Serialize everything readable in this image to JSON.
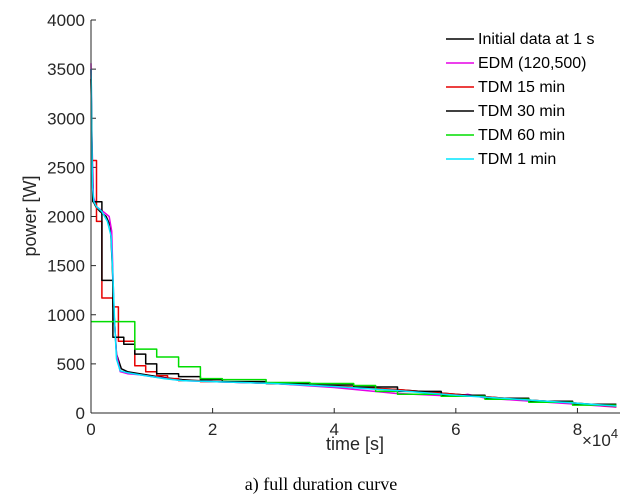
{
  "caption": "a) full duration curve",
  "chart_data": {
    "type": "line",
    "xlabel": "time [s]",
    "ylabel": "power [W]",
    "x_exponent_label": "×10",
    "x_exponent_power": "4",
    "xlim": [
      0,
      87000
    ],
    "ylim": [
      0,
      4000
    ],
    "xticks": [
      0,
      20000,
      40000,
      60000,
      80000
    ],
    "xtick_labels": [
      "0",
      "2",
      "4",
      "6",
      "8"
    ],
    "yticks": [
      0,
      500,
      1000,
      1500,
      2000,
      2500,
      3000,
      3500,
      4000
    ],
    "ytick_labels": [
      "0",
      "500",
      "1000",
      "1500",
      "2000",
      "2500",
      "3000",
      "3500",
      "4000"
    ],
    "legend_position": "top-right",
    "series": [
      {
        "name": "Initial data at 1 s",
        "color": "#000000",
        "points": [
          [
            0,
            3500
          ],
          [
            80,
            3000
          ],
          [
            200,
            2500
          ],
          [
            400,
            2150
          ],
          [
            800,
            2100
          ],
          [
            1500,
            2050
          ],
          [
            2500,
            2000
          ],
          [
            3200,
            1900
          ],
          [
            3500,
            1500
          ],
          [
            3800,
            1000
          ],
          [
            4200,
            600
          ],
          [
            5000,
            450
          ],
          [
            6000,
            420
          ],
          [
            8000,
            400
          ],
          [
            10000,
            380
          ],
          [
            12000,
            360
          ],
          [
            15000,
            340
          ],
          [
            20000,
            320
          ],
          [
            30000,
            300
          ],
          [
            40000,
            270
          ],
          [
            50000,
            240
          ],
          [
            60000,
            190
          ],
          [
            70000,
            140
          ],
          [
            80000,
            100
          ],
          [
            86400,
            70
          ]
        ]
      },
      {
        "name": "EDM (120,500)",
        "color": "#e600e6",
        "points": [
          [
            0,
            3560
          ],
          [
            150,
            2800
          ],
          [
            400,
            2200
          ],
          [
            900,
            2100
          ],
          [
            2000,
            2050
          ],
          [
            3000,
            2000
          ],
          [
            3400,
            1850
          ],
          [
            3800,
            1000
          ],
          [
            4200,
            600
          ],
          [
            4800,
            420
          ],
          [
            6000,
            400
          ],
          [
            8000,
            390
          ],
          [
            10000,
            370
          ],
          [
            15000,
            330
          ],
          [
            20000,
            320
          ],
          [
            30000,
            300
          ],
          [
            40000,
            260
          ],
          [
            50000,
            200
          ],
          [
            60000,
            170
          ],
          [
            62000,
            190
          ],
          [
            65000,
            150
          ],
          [
            70000,
            130
          ],
          [
            80000,
            90
          ],
          [
            86400,
            60
          ]
        ]
      },
      {
        "name": "TDM 15 min",
        "color": "#e60000",
        "points": [
          [
            0,
            2570
          ],
          [
            900,
            2570
          ],
          [
            900,
            1950
          ],
          [
            1800,
            1950
          ],
          [
            1800,
            1170
          ],
          [
            2700,
            1170
          ],
          [
            2700,
            1170
          ],
          [
            3600,
            1170
          ],
          [
            3600,
            1080
          ],
          [
            4500,
            1080
          ],
          [
            4500,
            730
          ],
          [
            5400,
            730
          ],
          [
            5400,
            730
          ],
          [
            7200,
            730
          ],
          [
            7200,
            480
          ],
          [
            9000,
            480
          ],
          [
            9000,
            420
          ],
          [
            10800,
            420
          ],
          [
            10800,
            380
          ],
          [
            12600,
            380
          ],
          [
            12600,
            350
          ],
          [
            14400,
            350
          ],
          [
            14400,
            330
          ],
          [
            18000,
            330
          ],
          [
            18000,
            320
          ],
          [
            22000,
            320
          ],
          [
            30000,
            300
          ],
          [
            40000,
            275
          ],
          [
            50000,
            240
          ],
          [
            60000,
            190
          ],
          [
            70000,
            140
          ],
          [
            80000,
            100
          ],
          [
            86400,
            65
          ]
        ]
      },
      {
        "name": "TDM 30 min",
        "color": "#000000",
        "points": [
          [
            0,
            3400
          ],
          [
            300,
            2150
          ],
          [
            1800,
            2150
          ],
          [
            1800,
            1350
          ],
          [
            3600,
            1350
          ],
          [
            3600,
            770
          ],
          [
            5400,
            770
          ],
          [
            5400,
            700
          ],
          [
            7200,
            700
          ],
          [
            7200,
            600
          ],
          [
            9000,
            600
          ],
          [
            9000,
            500
          ],
          [
            10800,
            500
          ],
          [
            10800,
            400
          ],
          [
            14400,
            400
          ],
          [
            14400,
            370
          ],
          [
            18000,
            370
          ],
          [
            18000,
            340
          ],
          [
            21600,
            340
          ],
          [
            21600,
            320
          ],
          [
            28800,
            320
          ],
          [
            28800,
            300
          ],
          [
            36000,
            300
          ],
          [
            36000,
            285
          ],
          [
            43200,
            285
          ],
          [
            43200,
            265
          ],
          [
            50400,
            265
          ],
          [
            50400,
            220
          ],
          [
            57600,
            220
          ],
          [
            57600,
            180
          ],
          [
            64800,
            180
          ],
          [
            64800,
            150
          ],
          [
            72000,
            150
          ],
          [
            72000,
            120
          ],
          [
            79200,
            120
          ],
          [
            79200,
            90
          ],
          [
            86400,
            90
          ]
        ]
      },
      {
        "name": "TDM 60 min",
        "color": "#00dd00",
        "points": [
          [
            0,
            930
          ],
          [
            3600,
            930
          ],
          [
            3600,
            930
          ],
          [
            7200,
            930
          ],
          [
            7200,
            650
          ],
          [
            10800,
            650
          ],
          [
            10800,
            570
          ],
          [
            14400,
            570
          ],
          [
            14400,
            470
          ],
          [
            18000,
            470
          ],
          [
            18000,
            350
          ],
          [
            21600,
            350
          ],
          [
            21600,
            340
          ],
          [
            28800,
            340
          ],
          [
            28800,
            310
          ],
          [
            36000,
            310
          ],
          [
            36000,
            300
          ],
          [
            43200,
            300
          ],
          [
            43200,
            280
          ],
          [
            46800,
            280
          ],
          [
            46800,
            220
          ],
          [
            50400,
            220
          ],
          [
            50400,
            190
          ],
          [
            57600,
            190
          ],
          [
            57600,
            170
          ],
          [
            64800,
            170
          ],
          [
            64800,
            140
          ],
          [
            72000,
            140
          ],
          [
            72000,
            110
          ],
          [
            79200,
            110
          ],
          [
            79200,
            80
          ],
          [
            86400,
            80
          ]
        ]
      },
      {
        "name": "TDM 1 min",
        "color": "#00e5ff",
        "points": [
          [
            0,
            3500
          ],
          [
            60,
            3300
          ],
          [
            120,
            2800
          ],
          [
            240,
            2300
          ],
          [
            480,
            2150
          ],
          [
            900,
            2100
          ],
          [
            1800,
            2050
          ],
          [
            2700,
            1950
          ],
          [
            3300,
            1800
          ],
          [
            3600,
            1400
          ],
          [
            3900,
            900
          ],
          [
            4200,
            550
          ],
          [
            4800,
            430
          ],
          [
            6000,
            410
          ],
          [
            8000,
            390
          ],
          [
            10000,
            370
          ],
          [
            12000,
            350
          ],
          [
            15000,
            330
          ],
          [
            20000,
            320
          ],
          [
            30000,
            300
          ],
          [
            40000,
            270
          ],
          [
            50000,
            230
          ],
          [
            60000,
            180
          ],
          [
            70000,
            140
          ],
          [
            80000,
            100
          ],
          [
            86400,
            70
          ]
        ]
      }
    ]
  }
}
